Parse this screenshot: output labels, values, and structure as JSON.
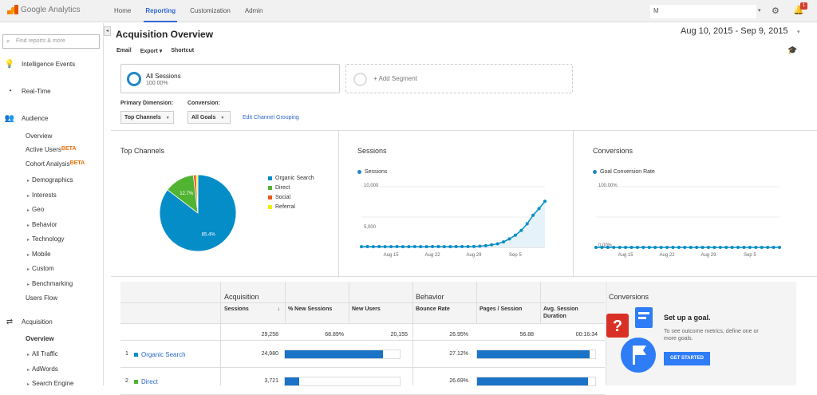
{
  "app": {
    "logo_text": "Google Analytics",
    "account_initial": "M"
  },
  "nav": {
    "home": "Home",
    "reporting": "Reporting",
    "customization": "Customization",
    "admin": "Admin"
  },
  "notifications": {
    "count": "1"
  },
  "sidebar": {
    "search_placeholder": "Find reports & more",
    "intelligence": "Intelligence Events",
    "realtime": "Real-Time",
    "audience": "Audience",
    "audience_items": [
      "Overview",
      "Active Users",
      "Cohort Analysis"
    ],
    "beta": "BETA",
    "audience_subs": [
      "Demographics",
      "Interests",
      "Geo",
      "Behavior",
      "Technology",
      "Mobile",
      "Custom",
      "Benchmarking"
    ],
    "users_flow": "Users Flow",
    "acquisition": "Acquisition",
    "acq_overview": "Overview",
    "acq_subs": [
      "All Traffic",
      "AdWords",
      "Search Engine"
    ]
  },
  "page": {
    "title": "Acquisition Overview",
    "date_range": "Aug 10, 2015 - Sep 9, 2015",
    "toolbar": {
      "email": "Email",
      "export": "Export ▾",
      "shortcut": "Shortcut"
    }
  },
  "segment": {
    "name": "All Sessions",
    "pct": "100.00%",
    "add": "+ Add Segment"
  },
  "dimension": {
    "primary_label": "Primary Dimension:",
    "primary_value": "Top Channels",
    "conversion_label": "Conversion:",
    "conversion_value": "All Goals",
    "edit_link": "Edit Channel Grouping"
  },
  "panels": {
    "top_channels": "Top Channels",
    "sessions": "Sessions",
    "conversions": "Conversions"
  },
  "chart_data": [
    {
      "type": "pie",
      "title": "Top Channels",
      "slices": [
        {
          "label": "Organic Search",
          "value": 85.4,
          "color": "#058dc7"
        },
        {
          "label": "Direct",
          "value": 12.7,
          "color": "#50b432"
        },
        {
          "label": "Social",
          "value": 1.2,
          "color": "#ed561b"
        },
        {
          "label": "Referral",
          "value": 0.7,
          "color": "#edef00"
        }
      ],
      "labels_shown": [
        "85.4%",
        "12.7%"
      ]
    },
    {
      "type": "area",
      "title": "Sessions",
      "series": [
        {
          "name": "Sessions",
          "values": [
            120,
            130,
            110,
            125,
            115,
            120,
            130,
            118,
            122,
            128,
            120,
            115,
            125,
            130,
            120,
            118,
            125,
            130,
            135,
            150,
            200,
            280,
            420,
            600,
            900,
            1400,
            2000,
            2800,
            3900,
            5300,
            6400,
            7600
          ]
        }
      ],
      "y_ticks": [
        "10,000",
        "5,000"
      ],
      "ylim": [
        0,
        10000
      ],
      "x_ticks": [
        "Aug 15",
        "Aug 22",
        "Aug 29",
        "Sep 5"
      ],
      "color": "#058dc7"
    },
    {
      "type": "line",
      "title": "Conversions",
      "series": [
        {
          "name": "Goal Conversion Rate",
          "values": [
            0,
            0,
            0,
            0,
            0,
            0,
            0,
            0,
            0,
            0,
            0,
            0,
            0,
            0,
            0,
            0,
            0,
            0,
            0,
            0,
            0,
            0,
            0,
            0,
            0,
            0,
            0,
            0,
            0,
            0,
            0,
            0
          ]
        }
      ],
      "y_ticks": [
        "100.00%",
        "0.00%"
      ],
      "ylim": [
        0,
        100
      ],
      "x_ticks": [
        "Aug 15",
        "Aug 22",
        "Aug 29",
        "Sep 5"
      ],
      "color": "#058dc7"
    }
  ],
  "table": {
    "group_acquisition": "Acquisition",
    "group_behavior": "Behavior",
    "group_conversions": "Conversions",
    "headers": [
      "Sessions",
      "% New Sessions",
      "New Users",
      "Bounce Rate",
      "Pages / Session",
      "Avg. Session Duration"
    ],
    "sort_arrow": "↓",
    "totals": [
      "29,258",
      "68.89%",
      "20,155",
      "26.95%",
      "56.88",
      "00:16:34"
    ],
    "rows": [
      {
        "num": "1",
        "name": "Organic Search",
        "color": "#058dc7",
        "sessions": "24,980",
        "bounce": "27.12%",
        "sessions_fraction": 0.854,
        "bounce_fraction": 0.95
      },
      {
        "num": "2",
        "name": "Direct",
        "color": "#50b432",
        "sessions": "3,721",
        "bounce": "26.69%",
        "sessions_fraction": 0.127,
        "bounce_fraction": 0.94
      }
    ]
  },
  "goal": {
    "title": "Set up a goal.",
    "desc": "To see outcome metrics, define one or more goals.",
    "button": "GET STARTED"
  }
}
